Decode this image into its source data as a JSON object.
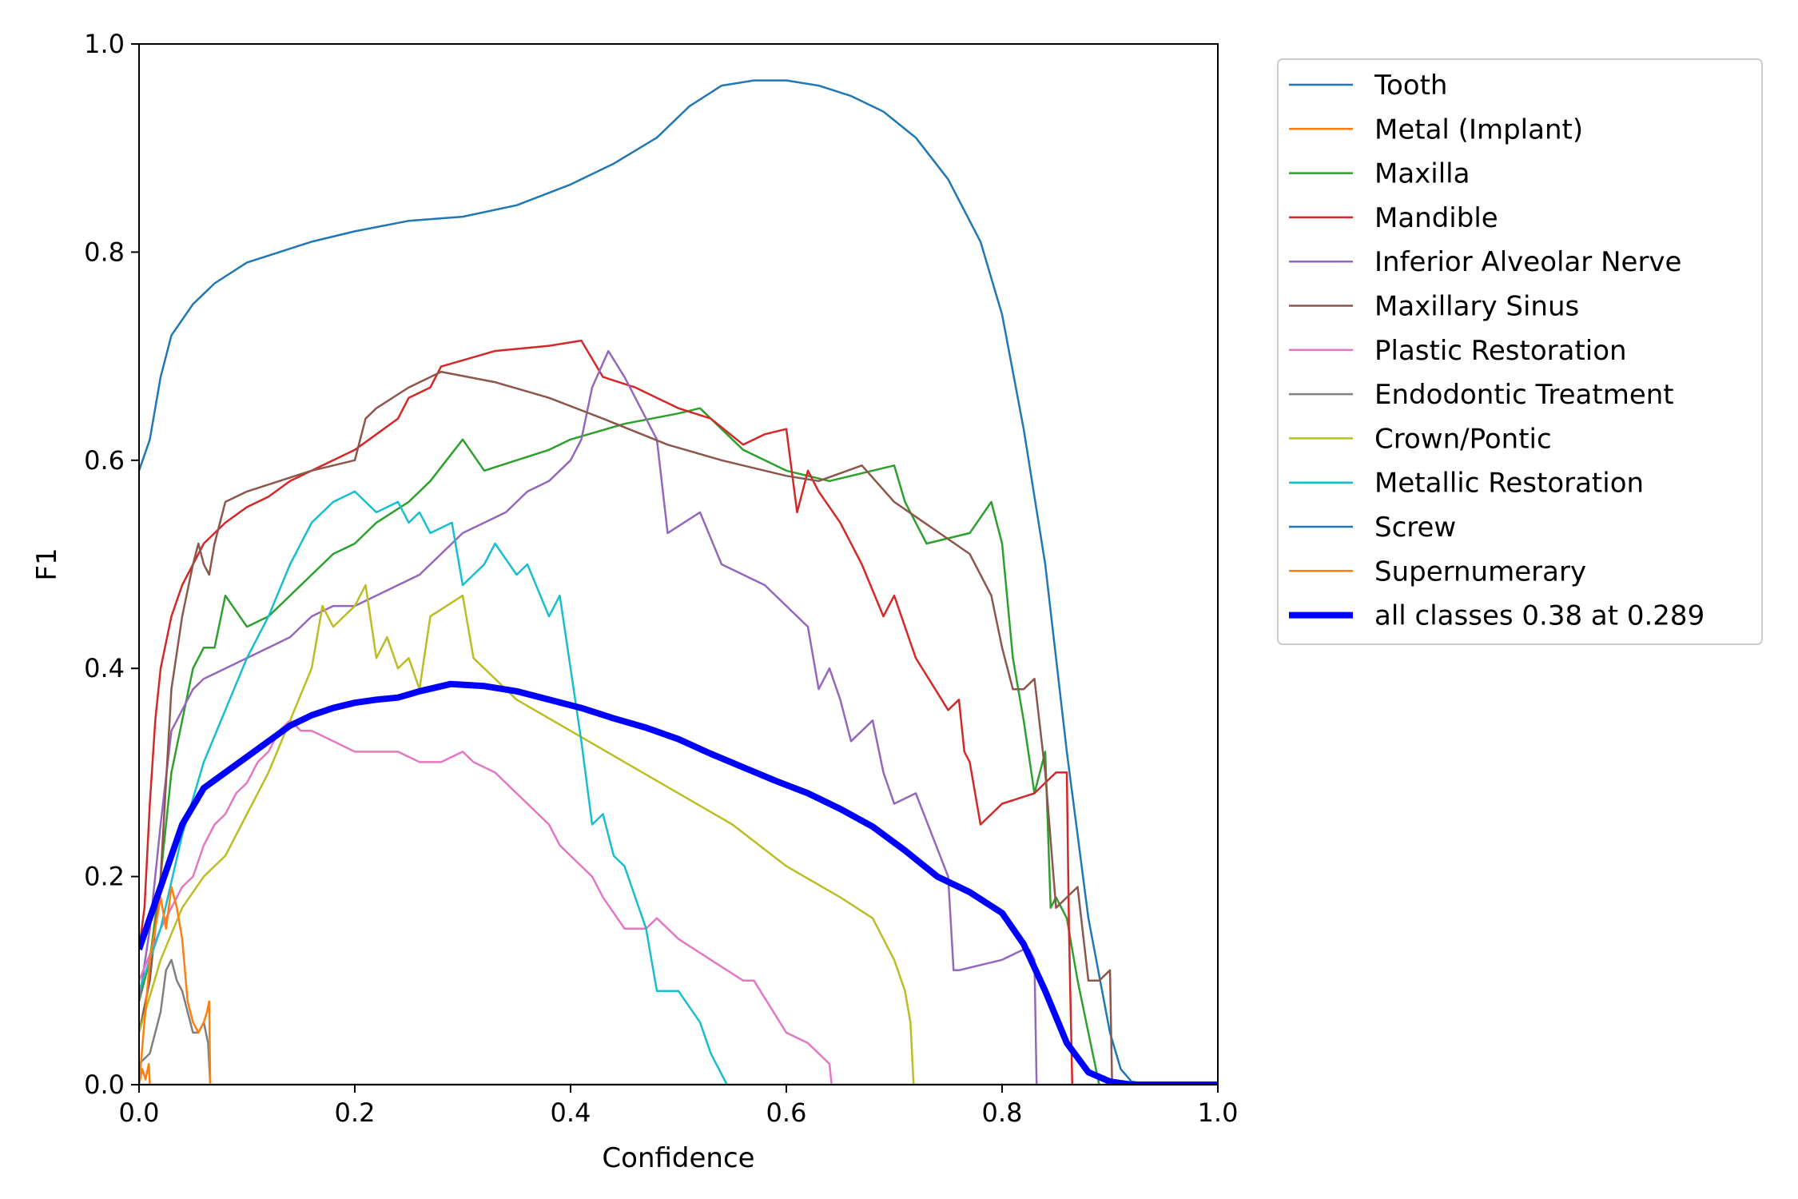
{
  "chart_data": {
    "type": "line",
    "title": "",
    "xlabel": "Confidence",
    "ylabel": "F1",
    "xlim": [
      0.0,
      1.0
    ],
    "ylim": [
      0.0,
      1.0
    ],
    "x_ticks": [
      "0.0",
      "0.2",
      "0.4",
      "0.6",
      "0.8",
      "1.0"
    ],
    "y_ticks": [
      "0.0",
      "0.2",
      "0.4",
      "0.6",
      "0.8",
      "1.0"
    ],
    "grid": false,
    "legend_position": "outside upper right",
    "series": [
      {
        "name": "Tooth",
        "color": "#1f77b4",
        "width": 2.5,
        "x": [
          0.0,
          0.01,
          0.02,
          0.03,
          0.05,
          0.07,
          0.1,
          0.13,
          0.16,
          0.2,
          0.25,
          0.3,
          0.35,
          0.4,
          0.44,
          0.48,
          0.51,
          0.54,
          0.57,
          0.6,
          0.63,
          0.66,
          0.69,
          0.72,
          0.75,
          0.78,
          0.8,
          0.82,
          0.84,
          0.86,
          0.88,
          0.9,
          0.91,
          0.92,
          0.94,
          1.0
        ],
        "y": [
          0.59,
          0.62,
          0.68,
          0.72,
          0.75,
          0.77,
          0.79,
          0.8,
          0.81,
          0.82,
          0.83,
          0.834,
          0.845,
          0.865,
          0.885,
          0.91,
          0.94,
          0.96,
          0.965,
          0.965,
          0.96,
          0.95,
          0.935,
          0.91,
          0.87,
          0.81,
          0.74,
          0.63,
          0.5,
          0.32,
          0.16,
          0.05,
          0.015,
          0.003,
          0.0,
          0.0
        ]
      },
      {
        "name": "Metal (Implant)",
        "color": "#ff7f0e",
        "width": 2.5,
        "x": [
          0.0,
          0.003,
          0.006,
          0.009,
          0.01,
          0.02,
          1.0
        ],
        "y": [
          0.0,
          0.015,
          0.005,
          0.02,
          0.0,
          0.0,
          0.0
        ]
      },
      {
        "name": "Maxilla",
        "color": "#2ca02c",
        "width": 2.5,
        "x": [
          0.0,
          0.01,
          0.02,
          0.03,
          0.05,
          0.06,
          0.07,
          0.08,
          0.1,
          0.12,
          0.14,
          0.16,
          0.18,
          0.2,
          0.22,
          0.25,
          0.27,
          0.3,
          0.32,
          0.35,
          0.38,
          0.4,
          0.45,
          0.5,
          0.52,
          0.56,
          0.6,
          0.64,
          0.68,
          0.7,
          0.71,
          0.73,
          0.77,
          0.79,
          0.8,
          0.81,
          0.82,
          0.83,
          0.84,
          0.845,
          0.85,
          0.86,
          0.87,
          0.88,
          0.89
        ],
        "y": [
          0.08,
          0.12,
          0.2,
          0.3,
          0.4,
          0.42,
          0.42,
          0.47,
          0.44,
          0.45,
          0.47,
          0.49,
          0.51,
          0.52,
          0.54,
          0.56,
          0.58,
          0.62,
          0.59,
          0.6,
          0.61,
          0.62,
          0.635,
          0.645,
          0.65,
          0.61,
          0.59,
          0.58,
          0.59,
          0.595,
          0.56,
          0.52,
          0.53,
          0.56,
          0.52,
          0.41,
          0.35,
          0.28,
          0.32,
          0.17,
          0.18,
          0.16,
          0.1,
          0.05,
          0.0
        ]
      },
      {
        "name": "Mandible",
        "color": "#d62728",
        "width": 2.5,
        "x": [
          0.0,
          0.005,
          0.01,
          0.015,
          0.02,
          0.03,
          0.04,
          0.05,
          0.06,
          0.08,
          0.1,
          0.12,
          0.14,
          0.16,
          0.18,
          0.2,
          0.22,
          0.24,
          0.25,
          0.27,
          0.28,
          0.33,
          0.38,
          0.41,
          0.43,
          0.46,
          0.48,
          0.5,
          0.53,
          0.56,
          0.58,
          0.6,
          0.61,
          0.62,
          0.63,
          0.65,
          0.67,
          0.69,
          0.7,
          0.72,
          0.75,
          0.76,
          0.765,
          0.77,
          0.78,
          0.8,
          0.83,
          0.85,
          0.86,
          0.862,
          0.865
        ],
        "y": [
          0.13,
          0.17,
          0.27,
          0.35,
          0.4,
          0.45,
          0.48,
          0.5,
          0.52,
          0.54,
          0.555,
          0.565,
          0.58,
          0.59,
          0.6,
          0.61,
          0.625,
          0.64,
          0.66,
          0.67,
          0.69,
          0.705,
          0.71,
          0.715,
          0.68,
          0.67,
          0.66,
          0.65,
          0.64,
          0.615,
          0.625,
          0.63,
          0.55,
          0.59,
          0.57,
          0.54,
          0.5,
          0.45,
          0.47,
          0.41,
          0.36,
          0.37,
          0.32,
          0.31,
          0.25,
          0.27,
          0.28,
          0.3,
          0.3,
          0.15,
          0.0
        ]
      },
      {
        "name": "Inferior Alveolar Nerve",
        "color": "#9467bd",
        "width": 2.5,
        "x": [
          0.0,
          0.01,
          0.02,
          0.03,
          0.04,
          0.05,
          0.06,
          0.08,
          0.1,
          0.12,
          0.14,
          0.16,
          0.18,
          0.2,
          0.22,
          0.24,
          0.26,
          0.28,
          0.3,
          0.32,
          0.34,
          0.36,
          0.38,
          0.4,
          0.41,
          0.42,
          0.435,
          0.45,
          0.47,
          0.48,
          0.49,
          0.52,
          0.54,
          0.58,
          0.62,
          0.63,
          0.64,
          0.65,
          0.66,
          0.67,
          0.68,
          0.69,
          0.7,
          0.72,
          0.75,
          0.755,
          0.76,
          0.8,
          0.82,
          0.825,
          0.83,
          0.832
        ],
        "y": [
          0.08,
          0.15,
          0.25,
          0.34,
          0.36,
          0.38,
          0.39,
          0.4,
          0.41,
          0.42,
          0.43,
          0.45,
          0.46,
          0.46,
          0.47,
          0.48,
          0.49,
          0.51,
          0.53,
          0.54,
          0.55,
          0.57,
          0.58,
          0.6,
          0.62,
          0.67,
          0.705,
          0.68,
          0.64,
          0.62,
          0.53,
          0.55,
          0.5,
          0.48,
          0.44,
          0.38,
          0.4,
          0.37,
          0.33,
          0.34,
          0.35,
          0.3,
          0.27,
          0.28,
          0.2,
          0.11,
          0.11,
          0.12,
          0.13,
          0.13,
          0.12,
          0.0
        ]
      },
      {
        "name": "Maxillary Sinus",
        "color": "#8c564b",
        "width": 2.5,
        "x": [
          0.0,
          0.01,
          0.02,
          0.03,
          0.04,
          0.05,
          0.055,
          0.06,
          0.065,
          0.07,
          0.08,
          0.1,
          0.13,
          0.16,
          0.2,
          0.21,
          0.22,
          0.25,
          0.28,
          0.33,
          0.38,
          0.43,
          0.49,
          0.54,
          0.6,
          0.63,
          0.67,
          0.7,
          0.77,
          0.79,
          0.8,
          0.81,
          0.82,
          0.83,
          0.84,
          0.85,
          0.86,
          0.87,
          0.88,
          0.89,
          0.9,
          0.902
        ],
        "y": [
          0.05,
          0.1,
          0.2,
          0.38,
          0.45,
          0.5,
          0.52,
          0.5,
          0.49,
          0.52,
          0.56,
          0.57,
          0.58,
          0.59,
          0.6,
          0.64,
          0.65,
          0.67,
          0.685,
          0.675,
          0.66,
          0.64,
          0.615,
          0.6,
          0.585,
          0.58,
          0.595,
          0.56,
          0.51,
          0.47,
          0.42,
          0.38,
          0.38,
          0.39,
          0.3,
          0.17,
          0.18,
          0.19,
          0.1,
          0.1,
          0.11,
          0.0
        ]
      },
      {
        "name": "Plastic Restoration",
        "color": "#e377c2",
        "width": 2.5,
        "x": [
          0.0,
          0.02,
          0.04,
          0.05,
          0.06,
          0.07,
          0.08,
          0.09,
          0.1,
          0.11,
          0.12,
          0.13,
          0.14,
          0.15,
          0.16,
          0.18,
          0.2,
          0.22,
          0.24,
          0.26,
          0.27,
          0.28,
          0.3,
          0.31,
          0.33,
          0.34,
          0.36,
          0.38,
          0.39,
          0.4,
          0.42,
          0.43,
          0.45,
          0.47,
          0.48,
          0.5,
          0.53,
          0.56,
          0.57,
          0.6,
          0.62,
          0.64,
          0.642
        ],
        "y": [
          0.1,
          0.15,
          0.19,
          0.2,
          0.23,
          0.25,
          0.26,
          0.28,
          0.29,
          0.31,
          0.32,
          0.34,
          0.35,
          0.34,
          0.34,
          0.33,
          0.32,
          0.32,
          0.32,
          0.31,
          0.31,
          0.31,
          0.32,
          0.31,
          0.3,
          0.29,
          0.27,
          0.25,
          0.23,
          0.22,
          0.2,
          0.18,
          0.15,
          0.15,
          0.16,
          0.14,
          0.12,
          0.1,
          0.1,
          0.05,
          0.04,
          0.02,
          0.0
        ]
      },
      {
        "name": "Endodontic Treatment",
        "color": "#7f7f7f",
        "width": 2.5,
        "x": [
          0.0,
          0.01,
          0.02,
          0.025,
          0.03,
          0.035,
          0.04,
          0.045,
          0.05,
          0.055,
          0.06,
          0.064,
          0.066
        ],
        "y": [
          0.02,
          0.03,
          0.07,
          0.11,
          0.12,
          0.1,
          0.09,
          0.07,
          0.05,
          0.05,
          0.06,
          0.04,
          0.0
        ]
      },
      {
        "name": "Crown/Pontic",
        "color": "#bcbd22",
        "width": 2.5,
        "x": [
          0.0,
          0.02,
          0.04,
          0.06,
          0.08,
          0.1,
          0.12,
          0.14,
          0.16,
          0.17,
          0.18,
          0.19,
          0.2,
          0.21,
          0.22,
          0.23,
          0.24,
          0.25,
          0.26,
          0.27,
          0.3,
          0.31,
          0.35,
          0.4,
          0.45,
          0.5,
          0.55,
          0.6,
          0.65,
          0.68,
          0.7,
          0.71,
          0.715,
          0.718
        ],
        "y": [
          0.05,
          0.12,
          0.17,
          0.2,
          0.22,
          0.26,
          0.3,
          0.35,
          0.4,
          0.46,
          0.44,
          0.45,
          0.46,
          0.48,
          0.41,
          0.43,
          0.4,
          0.41,
          0.38,
          0.45,
          0.47,
          0.41,
          0.37,
          0.34,
          0.31,
          0.28,
          0.25,
          0.21,
          0.18,
          0.16,
          0.12,
          0.09,
          0.06,
          0.0
        ]
      },
      {
        "name": "Metallic Restoration",
        "color": "#17becf",
        "width": 2.5,
        "x": [
          0.0,
          0.02,
          0.04,
          0.06,
          0.08,
          0.1,
          0.12,
          0.14,
          0.16,
          0.18,
          0.2,
          0.22,
          0.24,
          0.25,
          0.26,
          0.27,
          0.29,
          0.3,
          0.32,
          0.33,
          0.35,
          0.36,
          0.38,
          0.39,
          0.4,
          0.41,
          0.42,
          0.43,
          0.44,
          0.45,
          0.46,
          0.47,
          0.48,
          0.49,
          0.5,
          0.52,
          0.53,
          0.54,
          0.545
        ],
        "y": [
          0.09,
          0.15,
          0.24,
          0.31,
          0.36,
          0.41,
          0.45,
          0.5,
          0.54,
          0.56,
          0.57,
          0.55,
          0.56,
          0.54,
          0.55,
          0.53,
          0.54,
          0.48,
          0.5,
          0.52,
          0.49,
          0.5,
          0.45,
          0.47,
          0.4,
          0.33,
          0.25,
          0.26,
          0.22,
          0.21,
          0.18,
          0.15,
          0.09,
          0.09,
          0.09,
          0.06,
          0.03,
          0.01,
          0.0
        ]
      },
      {
        "name": "Screw",
        "color": "#1f77b4",
        "width": 2.5,
        "x": [
          0.0,
          1.0
        ],
        "y": [
          0.0,
          0.0
        ]
      },
      {
        "name": "Supernumerary",
        "color": "#ff7f0e",
        "width": 2.5,
        "x": [
          0.0,
          0.01,
          0.02,
          0.025,
          0.03,
          0.035,
          0.04,
          0.045,
          0.05,
          0.055,
          0.06,
          0.063,
          0.065,
          0.066
        ],
        "y": [
          0.0,
          0.12,
          0.18,
          0.15,
          0.19,
          0.17,
          0.14,
          0.08,
          0.06,
          0.05,
          0.06,
          0.07,
          0.08,
          0.0
        ]
      },
      {
        "name": "all classes 0.38 at 0.289",
        "color": "#0000ff",
        "width": 8,
        "x": [
          0.0,
          0.02,
          0.04,
          0.06,
          0.08,
          0.1,
          0.12,
          0.14,
          0.16,
          0.18,
          0.2,
          0.22,
          0.24,
          0.26,
          0.289,
          0.32,
          0.35,
          0.38,
          0.41,
          0.44,
          0.47,
          0.5,
          0.53,
          0.56,
          0.59,
          0.62,
          0.65,
          0.68,
          0.71,
          0.74,
          0.77,
          0.8,
          0.82,
          0.84,
          0.86,
          0.88,
          0.9,
          0.92,
          0.95,
          1.0
        ],
        "y": [
          0.13,
          0.19,
          0.25,
          0.285,
          0.3,
          0.315,
          0.33,
          0.345,
          0.355,
          0.362,
          0.367,
          0.37,
          0.372,
          0.378,
          0.385,
          0.383,
          0.378,
          0.37,
          0.362,
          0.352,
          0.343,
          0.332,
          0.318,
          0.305,
          0.292,
          0.28,
          0.265,
          0.248,
          0.225,
          0.2,
          0.185,
          0.165,
          0.135,
          0.09,
          0.04,
          0.012,
          0.003,
          0.0,
          0.0,
          0.0
        ]
      }
    ]
  }
}
